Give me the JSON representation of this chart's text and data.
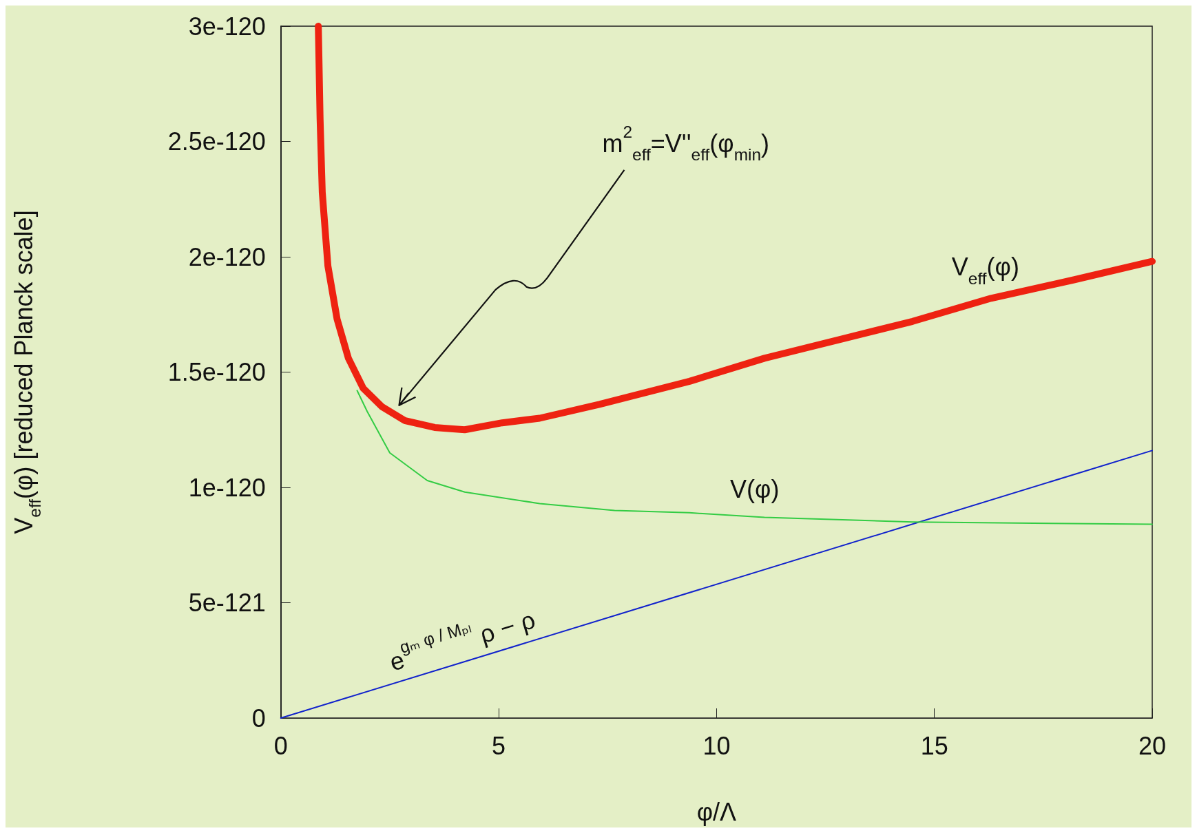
{
  "chart_data": {
    "type": "line",
    "xlabel": "φ/Λ",
    "ylabel": "V$_{eff}$(φ) [reduced Planck scale]",
    "xlim": [
      0,
      20
    ],
    "xticks": [
      0,
      5,
      10,
      15,
      20
    ],
    "ylim": [
      0,
      3e-120
    ],
    "yticks": [
      {
        "value": 0,
        "label": "0"
      },
      {
        "value": 5e-121,
        "label": "5e-121"
      },
      {
        "value": 1e-120,
        "label": "1e-120"
      },
      {
        "value": 1.5e-120,
        "label": "1.5e-120"
      },
      {
        "value": 2e-120,
        "label": "2e-120"
      },
      {
        "value": 2.5e-120,
        "label": "2.5e-120"
      },
      {
        "value": 3e-120,
        "label": "3e-120"
      }
    ],
    "grid": false,
    "marker": "none",
    "line_style": "solid",
    "annotations": [
      "m$^{2}$$_{eff}$=V''$_{eff}$(φ$_{min}$)"
    ],
    "series": [
      {
        "name": "V$_{eff}$(φ)",
        "color": "#ee2211",
        "x": [
          0.86,
          0.9,
          0.95,
          1.08,
          1.29,
          1.55,
          1.89,
          2.32,
          2.84,
          3.53,
          4.22,
          5.08,
          5.94,
          7.31,
          9.38,
          11.1,
          12.8,
          14.5,
          16.3,
          18.2,
          20
        ],
        "values": [
          3e-120,
          2.6e-120,
          2.28e-120,
          1.96e-120,
          1.73e-120,
          1.56e-120,
          1.43e-120,
          1.35e-120,
          1.29e-120,
          1.26e-120,
          1.25e-120,
          1.28e-120,
          1.3e-120,
          1.36e-120,
          1.46e-120,
          1.56e-120,
          1.64e-120,
          1.72e-120,
          1.82e-120,
          1.9e-120,
          1.98e-120
        ]
      },
      {
        "name": "V(φ)",
        "color": "#33cc44",
        "x": [
          1.75,
          1.98,
          2.5,
          3.36,
          4.22,
          5.94,
          7.66,
          9.38,
          11.1,
          14.5,
          20
        ],
        "values": [
          1.42e-120,
          1.33e-120,
          1.15e-120,
          1.03e-120,
          9.8e-121,
          9.3e-121,
          9e-121,
          8.9e-121,
          8.7e-121,
          8.5e-121,
          8.4e-121
        ]
      },
      {
        "name": "e$^{gₘ φ / Mₚₗ}$ ρ − ρ",
        "color": "#1122cc",
        "x": [
          0,
          20
        ],
        "values": [
          0,
          1.16e-120
        ]
      }
    ]
  }
}
